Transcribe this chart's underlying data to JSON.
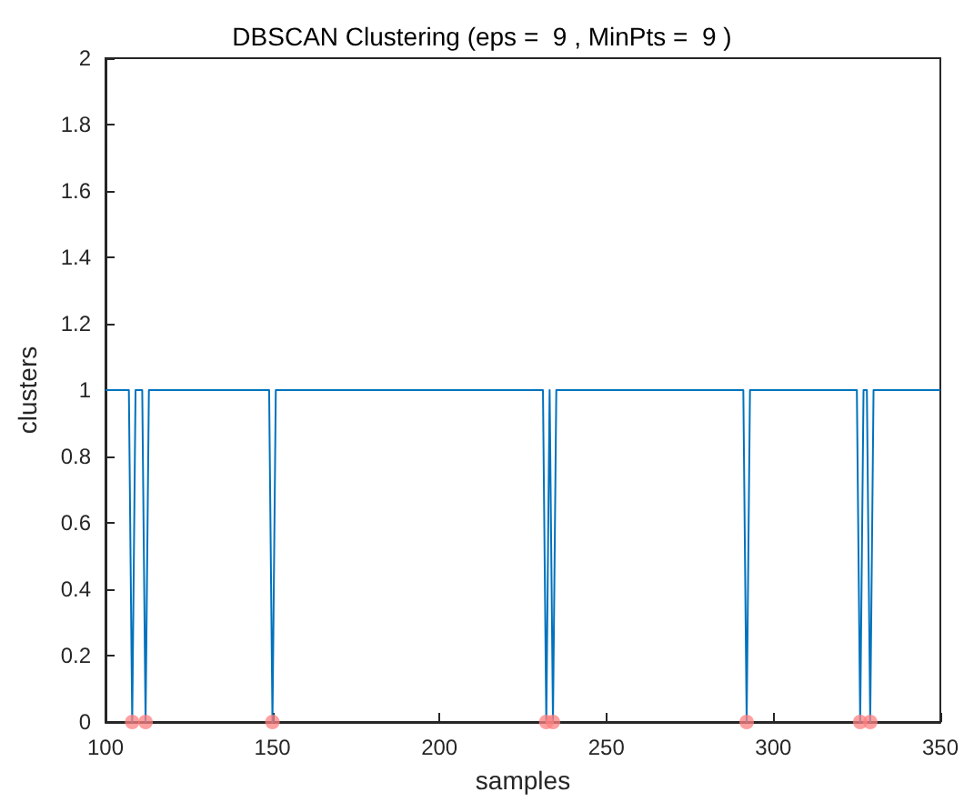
{
  "chart_data": {
    "type": "line",
    "title": "DBSCAN Clustering (eps =  9 , MinPts =  9 )",
    "xlabel": "samples",
    "ylabel": "clusters",
    "xlim": [
      100,
      350
    ],
    "xticks": [
      100,
      150,
      200,
      250,
      300,
      350
    ],
    "ylim": [
      0,
      2
    ],
    "yticks": [
      0,
      0.2,
      0.4,
      0.6,
      0.8,
      1,
      1.2,
      1.4,
      1.6,
      1.8,
      2
    ],
    "grid": false,
    "series": [
      {
        "color": "#0072bd",
        "marker": "none",
        "x": [
          100,
          107,
          108,
          109,
          111,
          112,
          113,
          149,
          150,
          151,
          231,
          232,
          233,
          233,
          234,
          235,
          291,
          292,
          293,
          325,
          326,
          327,
          328,
          329,
          330,
          350
        ],
        "values": [
          1,
          1,
          0,
          1,
          1,
          0,
          1,
          1,
          0,
          1,
          1,
          0,
          1,
          1,
          0,
          1,
          1,
          0,
          1,
          1,
          0,
          1,
          1,
          0,
          1,
          1
        ]
      },
      {
        "type": "scatter",
        "color": "#ff8080",
        "marker": "circle",
        "x": [
          108,
          112,
          150,
          232,
          234,
          292,
          326,
          329
        ],
        "values": [
          0,
          0,
          0,
          0,
          0,
          0,
          0,
          0
        ]
      }
    ]
  }
}
